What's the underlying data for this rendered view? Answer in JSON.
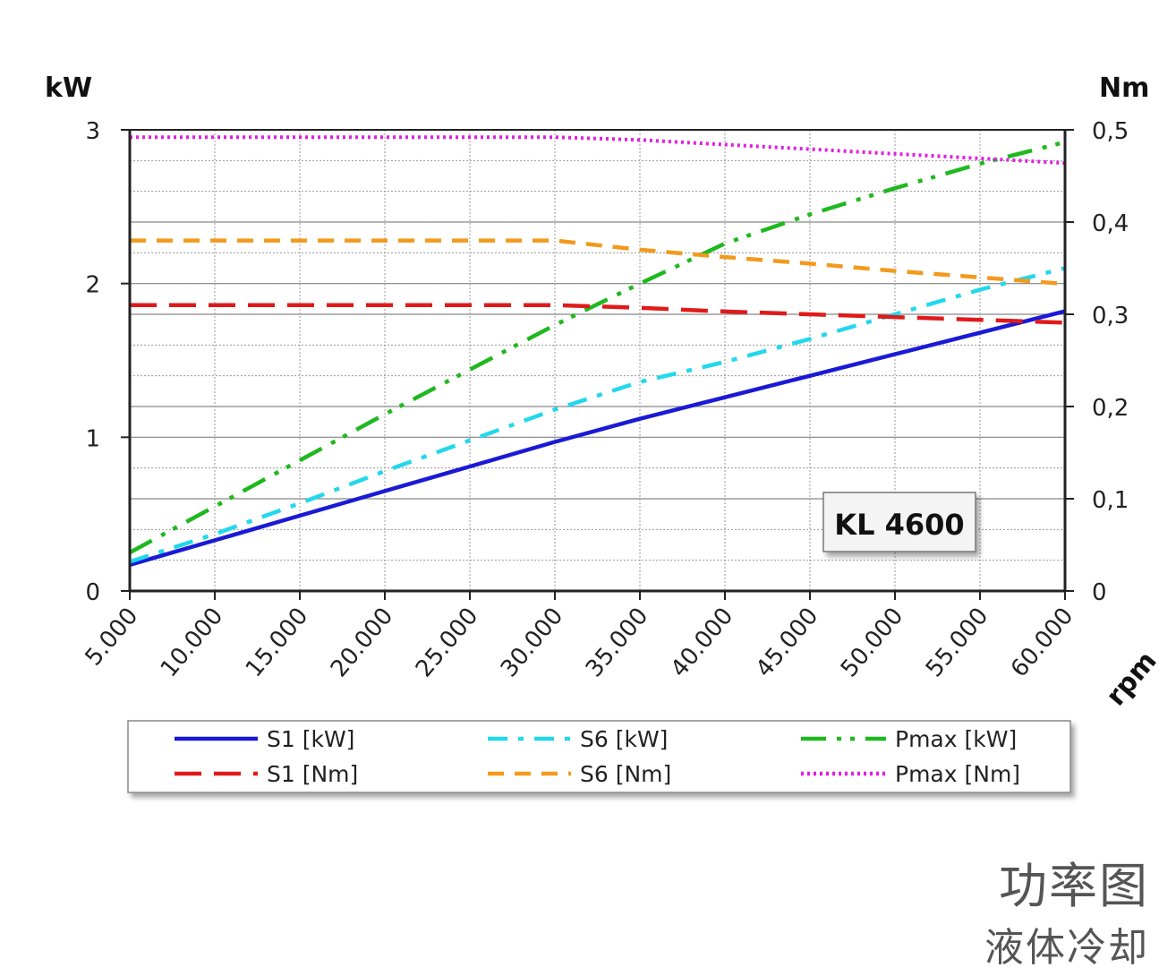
{
  "chart_data": {
    "type": "line",
    "title": "",
    "xlabel": "rpm",
    "ylabel_left": "kW",
    "ylabel_right": "Nm",
    "x": [
      5000,
      10000,
      15000,
      20000,
      25000,
      30000,
      35000,
      40000,
      45000,
      50000,
      55000,
      60000
    ],
    "x_tick_labels": [
      "5.000",
      "10.000",
      "15.000",
      "20.000",
      "25.000",
      "30.000",
      "35.000",
      "40.000",
      "45.000",
      "50.000",
      "55.000",
      "60.000"
    ],
    "xlim": [
      5000,
      60000
    ],
    "ylim_left": [
      0,
      3
    ],
    "ylim_right": [
      0,
      0.5
    ],
    "y_left_tick_labels": [
      "0",
      "1",
      "2",
      "3"
    ],
    "y_right_tick_labels": [
      "0",
      "0,1",
      "0,2",
      "0,3",
      "0,4",
      "0,5"
    ],
    "grid": true,
    "legend_position": "bottom",
    "annotation": "KL 4600",
    "series": [
      {
        "name": "S1 [kW]",
        "axis": "left",
        "color": "#1a1ad6",
        "style": "solid",
        "values": [
          0.17,
          0.33,
          0.49,
          0.65,
          0.81,
          0.97,
          1.12,
          1.26,
          1.4,
          1.54,
          1.68,
          1.82
        ]
      },
      {
        "name": "S6 [kW]",
        "axis": "left",
        "color": "#22d8ec",
        "style": "dashdot",
        "values": [
          0.19,
          0.37,
          0.57,
          0.78,
          0.98,
          1.18,
          1.36,
          1.49,
          1.64,
          1.8,
          1.96,
          2.1
        ]
      },
      {
        "name": "Pmax [kW]",
        "axis": "left",
        "color": "#1fb81f",
        "style": "dashdotdot",
        "values": [
          0.25,
          0.55,
          0.85,
          1.15,
          1.44,
          1.73,
          2.0,
          2.26,
          2.45,
          2.62,
          2.78,
          2.92
        ]
      },
      {
        "name": "S1 [Nm]",
        "axis": "right",
        "color": "#e01a1a",
        "style": "longdash",
        "values": [
          0.31,
          0.31,
          0.31,
          0.31,
          0.31,
          0.31,
          0.307,
          0.303,
          0.3,
          0.297,
          0.294,
          0.291
        ]
      },
      {
        "name": "S6 [Nm]",
        "axis": "right",
        "color": "#f29a1e",
        "style": "dash",
        "values": [
          0.38,
          0.38,
          0.38,
          0.38,
          0.38,
          0.38,
          0.37,
          0.362,
          0.355,
          0.347,
          0.34,
          0.333
        ]
      },
      {
        "name": "Pmax [Nm]",
        "axis": "right",
        "color": "#e020e0",
        "style": "dotted",
        "values": [
          0.492,
          0.492,
          0.492,
          0.492,
          0.492,
          0.492,
          0.489,
          0.484,
          0.479,
          0.474,
          0.469,
          0.464
        ]
      }
    ]
  },
  "caption": {
    "title": "功率图",
    "subtitle": "液体冷却"
  }
}
